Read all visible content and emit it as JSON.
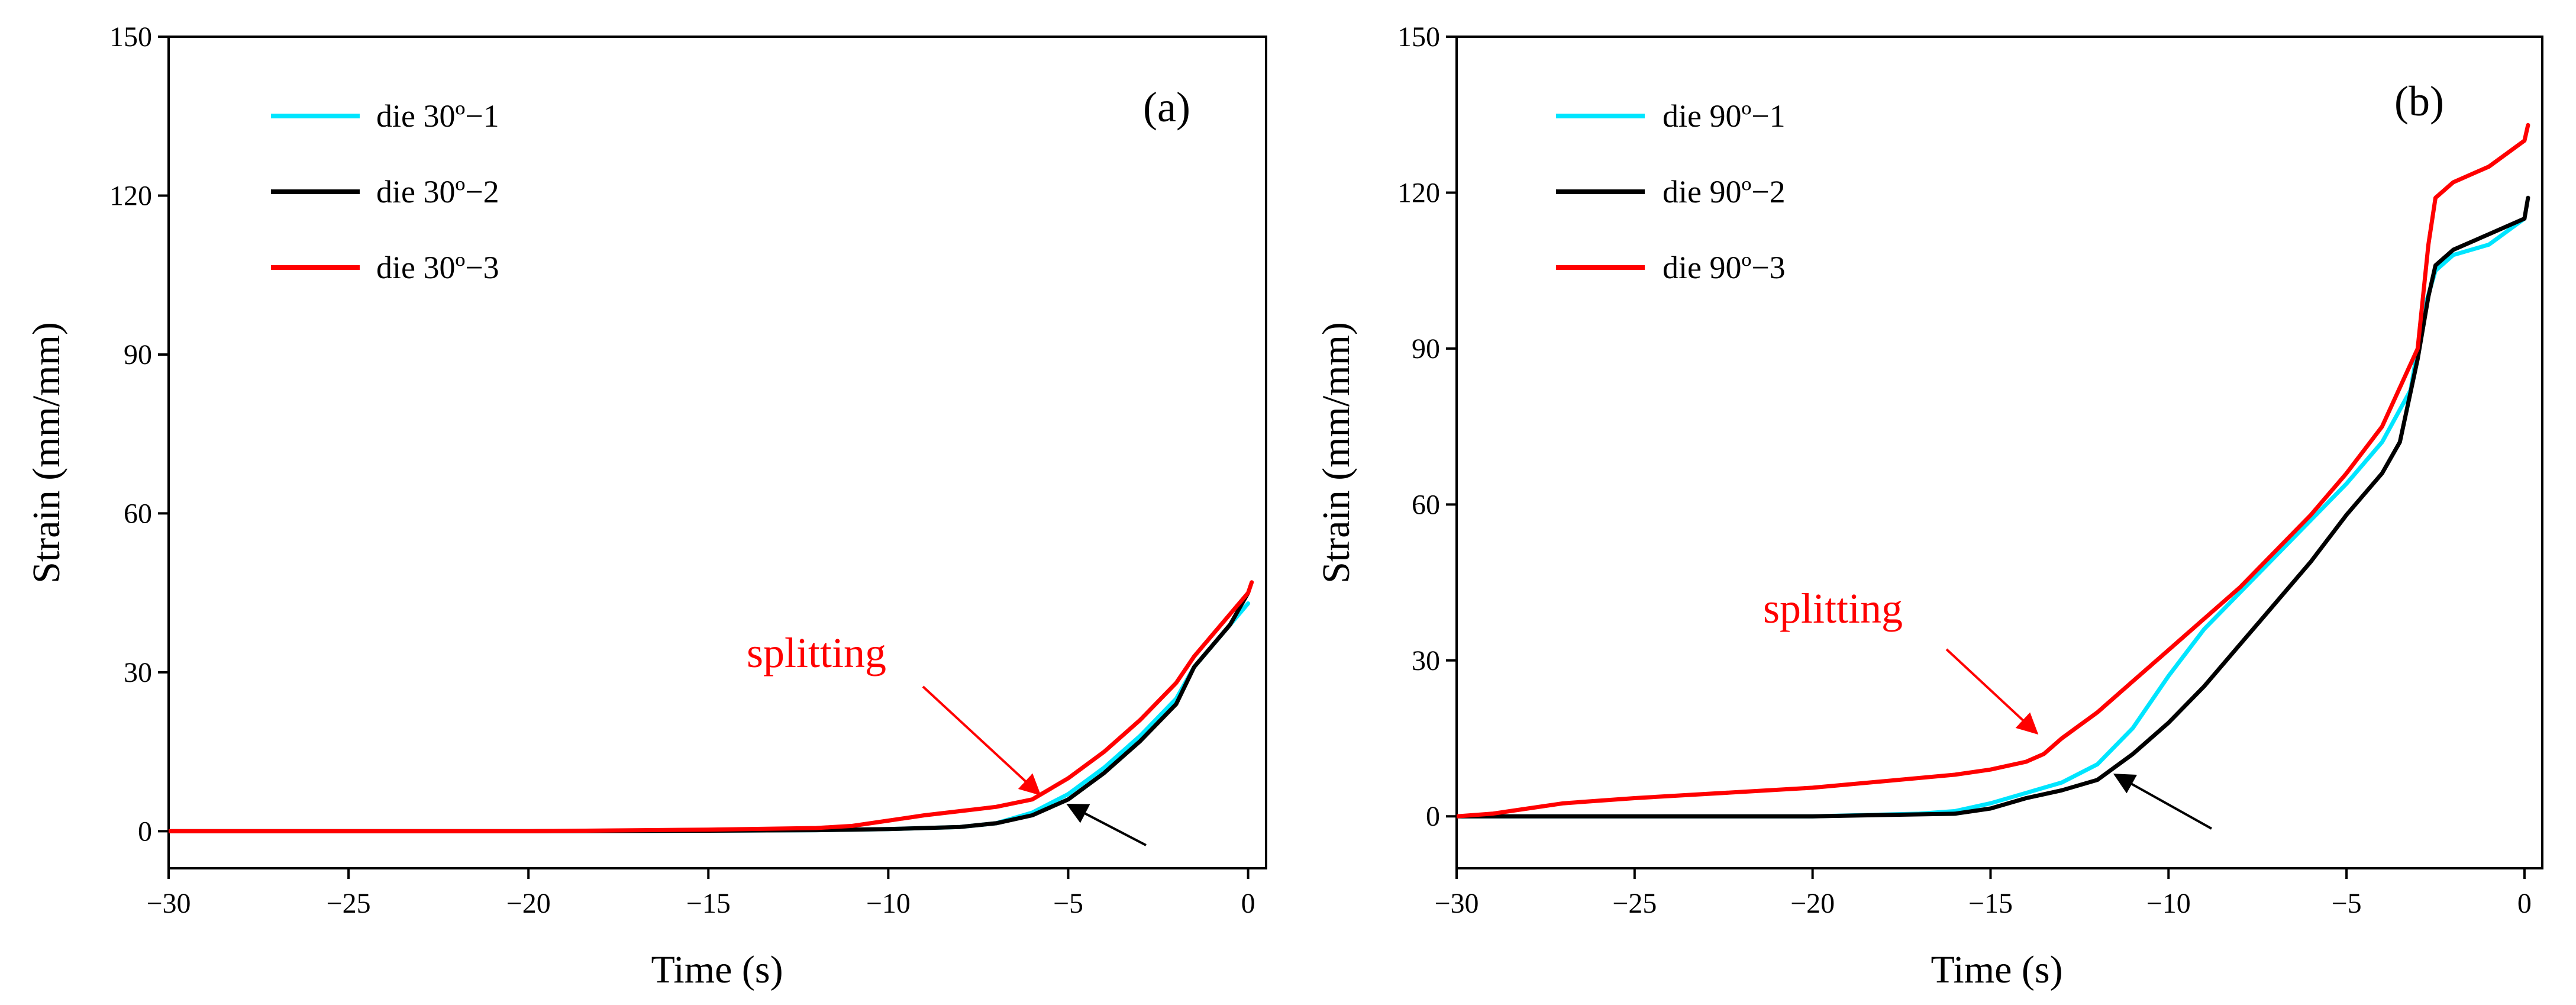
{
  "chart_data": [
    {
      "type": "line",
      "panel_label": "(a)",
      "xlabel": "Time (s)",
      "ylabel": "Strain (mm/mm)",
      "xlim": [
        -30,
        0.5
      ],
      "ylim": [
        -7,
        150
      ],
      "xticks": [
        -30,
        -25,
        -20,
        -15,
        -10,
        -5,
        0
      ],
      "yticks": [
        0,
        30,
        60,
        90,
        120,
        150
      ],
      "xtick_labels": [
        "−30",
        "−25",
        "−20",
        "−15",
        "−10",
        "−5",
        "0"
      ],
      "ytick_labels": [
        "0",
        "30",
        "60",
        "90",
        "120",
        "150"
      ],
      "legend_position": "top-left",
      "series": [
        {
          "name": "die 30º−1",
          "color": "#00e5ff",
          "x": [
            -30,
            -25,
            -20,
            -15,
            -12,
            -10,
            -8,
            -7,
            -6,
            -5,
            -4,
            -3,
            -2,
            -1.5,
            -1,
            -0.5,
            0
          ],
          "y": [
            0,
            0,
            0,
            0.1,
            0.2,
            0.4,
            0.8,
            1.5,
            3.5,
            7.0,
            12,
            18,
            25,
            31,
            35,
            39,
            43
          ]
        },
        {
          "name": "die 30º−2",
          "color": "#000000",
          "x": [
            -30,
            -25,
            -20,
            -15,
            -12,
            -10,
            -8,
            -7,
            -6,
            -5,
            -4,
            -3,
            -2,
            -1.5,
            -1,
            -0.5,
            0
          ],
          "y": [
            0,
            0,
            0,
            0.1,
            0.2,
            0.4,
            0.8,
            1.5,
            3.0,
            6.0,
            11,
            17,
            24,
            31,
            35,
            39,
            45
          ]
        },
        {
          "name": "die 30º−3",
          "color": "#ff0000",
          "x": [
            -30,
            -25,
            -20,
            -15,
            -12,
            -11,
            -10,
            -9,
            -8,
            -7,
            -6,
            -5,
            -4,
            -3,
            -2,
            -1.5,
            -1,
            -0.5,
            0,
            0.1
          ],
          "y": [
            0,
            0,
            0,
            0.3,
            0.6,
            1.0,
            2.0,
            3.0,
            3.8,
            4.6,
            6.0,
            10,
            15,
            21,
            28,
            33,
            37,
            41,
            45,
            47
          ]
        }
      ],
      "annotations": [
        {
          "text": "splitting",
          "color": "#ff0000",
          "arrow_target": [
            -5.8,
            7
          ]
        },
        {
          "text": "",
          "color": "#000000",
          "arrow_target": [
            -5.0,
            5
          ]
        }
      ]
    },
    {
      "type": "line",
      "panel_label": "(b)",
      "xlabel": "Time (s)",
      "ylabel": "Strain (mm/mm)",
      "xlim": [
        -30,
        0.5
      ],
      "ylim": [
        -10,
        150
      ],
      "xticks": [
        -30,
        -25,
        -20,
        -15,
        -10,
        -5,
        0
      ],
      "yticks": [
        0,
        30,
        60,
        90,
        120,
        150
      ],
      "xtick_labels": [
        "−30",
        "−25",
        "−20",
        "−15",
        "−10",
        "−5",
        "0"
      ],
      "ytick_labels": [
        "0",
        "30",
        "60",
        "90",
        "120",
        "150"
      ],
      "legend_position": "top-left",
      "series": [
        {
          "name": "die 90º−1",
          "color": "#00e5ff",
          "x": [
            -30,
            -25,
            -20,
            -17,
            -16,
            -15,
            -14,
            -13,
            -12,
            -11,
            -10,
            -9,
            -8,
            -7,
            -6,
            -5,
            -4,
            -3.2,
            -2.8,
            -2.5,
            -2,
            -1,
            0
          ],
          "y": [
            0,
            0,
            0,
            0.5,
            1.0,
            2.5,
            4.5,
            6.5,
            10,
            17,
            27,
            36,
            43,
            50,
            57,
            64,
            72,
            82,
            98,
            105,
            108,
            110,
            115
          ]
        },
        {
          "name": "die 90º−2",
          "color": "#000000",
          "x": [
            -30,
            -25,
            -20,
            -16,
            -15,
            -14,
            -13,
            -12,
            -11,
            -10,
            -9,
            -8,
            -7,
            -6,
            -5,
            -4,
            -3.5,
            -3,
            -2.7,
            -2.5,
            -2,
            -1,
            0,
            0.1
          ],
          "y": [
            0,
            0,
            0,
            0.5,
            1.5,
            3.5,
            5.0,
            7.0,
            12,
            18,
            25,
            33,
            41,
            49,
            58,
            66,
            72,
            88,
            100,
            106,
            109,
            112,
            115,
            119
          ]
        },
        {
          "name": "die 90º−3",
          "color": "#ff0000",
          "x": [
            -30,
            -29,
            -28,
            -27,
            -25,
            -20,
            -16,
            -15,
            -14,
            -13.5,
            -13,
            -12,
            -11,
            -10,
            -9,
            -8,
            -7,
            -6,
            -5,
            -4,
            -3,
            -2.7,
            -2.5,
            -2,
            -1,
            0,
            0.1
          ],
          "y": [
            0,
            0.5,
            1.5,
            2.5,
            3.5,
            5.5,
            8.0,
            9.0,
            10.5,
            12,
            15,
            20,
            26,
            32,
            38,
            44,
            51,
            58,
            66,
            75,
            90,
            110,
            119,
            122,
            125,
            130,
            133
          ]
        }
      ],
      "annotations": [
        {
          "text": "splitting",
          "color": "#ff0000",
          "arrow_target": [
            -13.7,
            16
          ]
        },
        {
          "text": "",
          "color": "#000000",
          "arrow_target": [
            -11.5,
            8
          ]
        }
      ]
    }
  ]
}
